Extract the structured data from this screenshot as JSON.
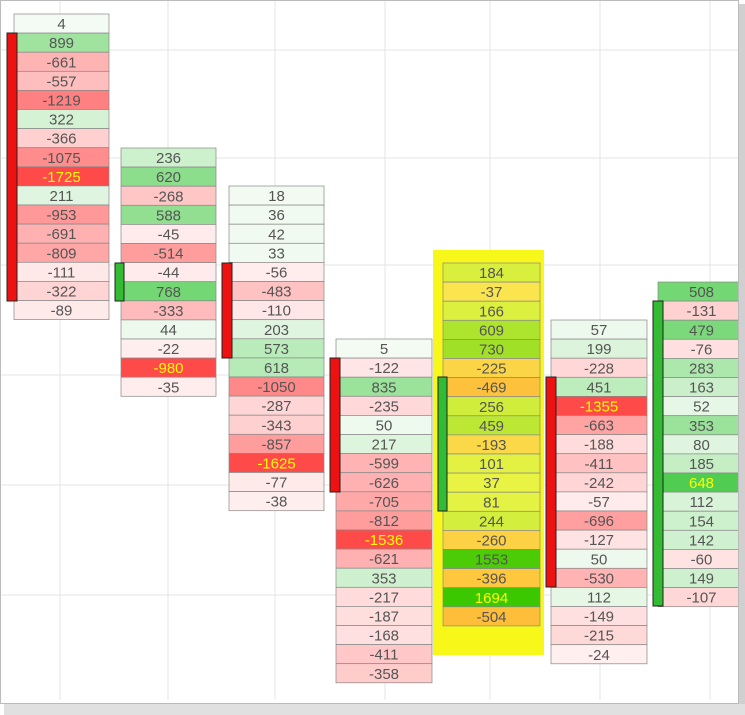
{
  "columns": [
    {
      "cells": [
        4,
        899,
        -661,
        -557,
        -1219,
        322,
        -366,
        -1075,
        -1725,
        211,
        -953,
        -691,
        -809,
        -111,
        -322,
        -89
      ]
    },
    {
      "cells": [
        236,
        620,
        -268,
        588,
        -45,
        -514,
        -44,
        768,
        -333,
        44,
        -22,
        -980,
        -35
      ]
    },
    {
      "cells": [
        18,
        36,
        42,
        33,
        -56,
        -483,
        -110,
        203,
        573,
        618,
        -1050,
        -287,
        -343,
        -857,
        -1625,
        -77,
        -38
      ]
    },
    {
      "cells": [
        5,
        -122,
        835,
        -235,
        50,
        217,
        -599,
        -626,
        -705,
        -812,
        -1536,
        -621,
        353,
        -217,
        -187,
        -168,
        -411,
        -358
      ]
    },
    {
      "cells": [
        184,
        -37,
        166,
        609,
        730,
        -225,
        -469,
        256,
        459,
        -193,
        101,
        37,
        81,
        244,
        -260,
        1553,
        -396,
        1694,
        -504
      ],
      "highlight": true
    },
    {
      "cells": [
        57,
        199,
        -228,
        451,
        -1355,
        -663,
        -188,
        -411,
        -242,
        -57,
        -696,
        -127,
        50,
        -530,
        112,
        -149,
        -215,
        -24
      ]
    },
    {
      "cells": [
        508,
        -131,
        479,
        -76,
        283,
        163,
        52,
        353,
        80,
        185,
        648,
        112,
        154,
        142,
        -60,
        149,
        -107
      ]
    }
  ]
}
